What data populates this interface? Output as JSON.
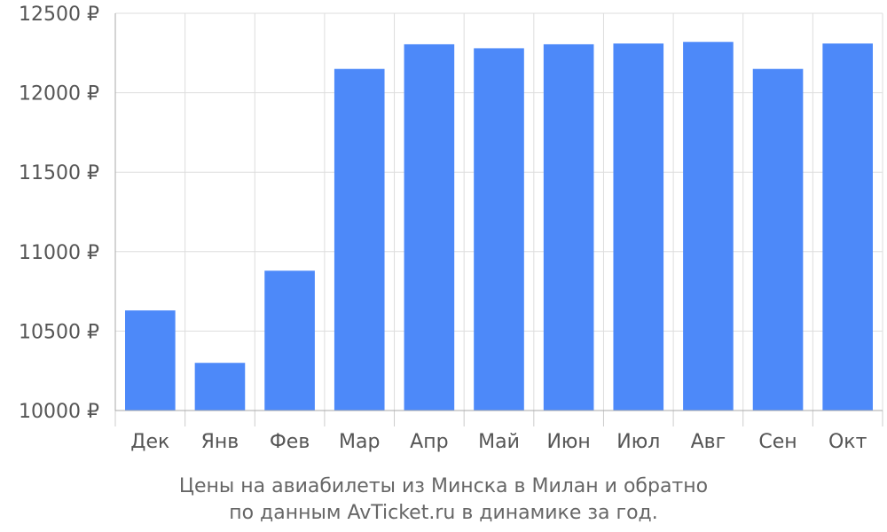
{
  "chart_data": {
    "type": "bar",
    "title": "",
    "xlabel": "",
    "ylabel": "",
    "categories": [
      "Дек",
      "Янв",
      "Фев",
      "Мар",
      "Апр",
      "Май",
      "Июн",
      "Июл",
      "Авг",
      "Сен",
      "Окт"
    ],
    "values": [
      10630,
      10300,
      10880,
      12150,
      12305,
      12280,
      12305,
      12310,
      12320,
      12150,
      12310
    ],
    "ylim": [
      10000,
      12500
    ],
    "yticks": [
      10000,
      10500,
      11000,
      11500,
      12000,
      12500
    ],
    "y_tick_suffix": " ₽",
    "grid": true,
    "bar_color": "#4d89f9",
    "caption_lines": [
      "Цены на авиабилеты из Минска в Милан и обратно",
      "по данным AvTicket.ru в динамике за год."
    ]
  }
}
